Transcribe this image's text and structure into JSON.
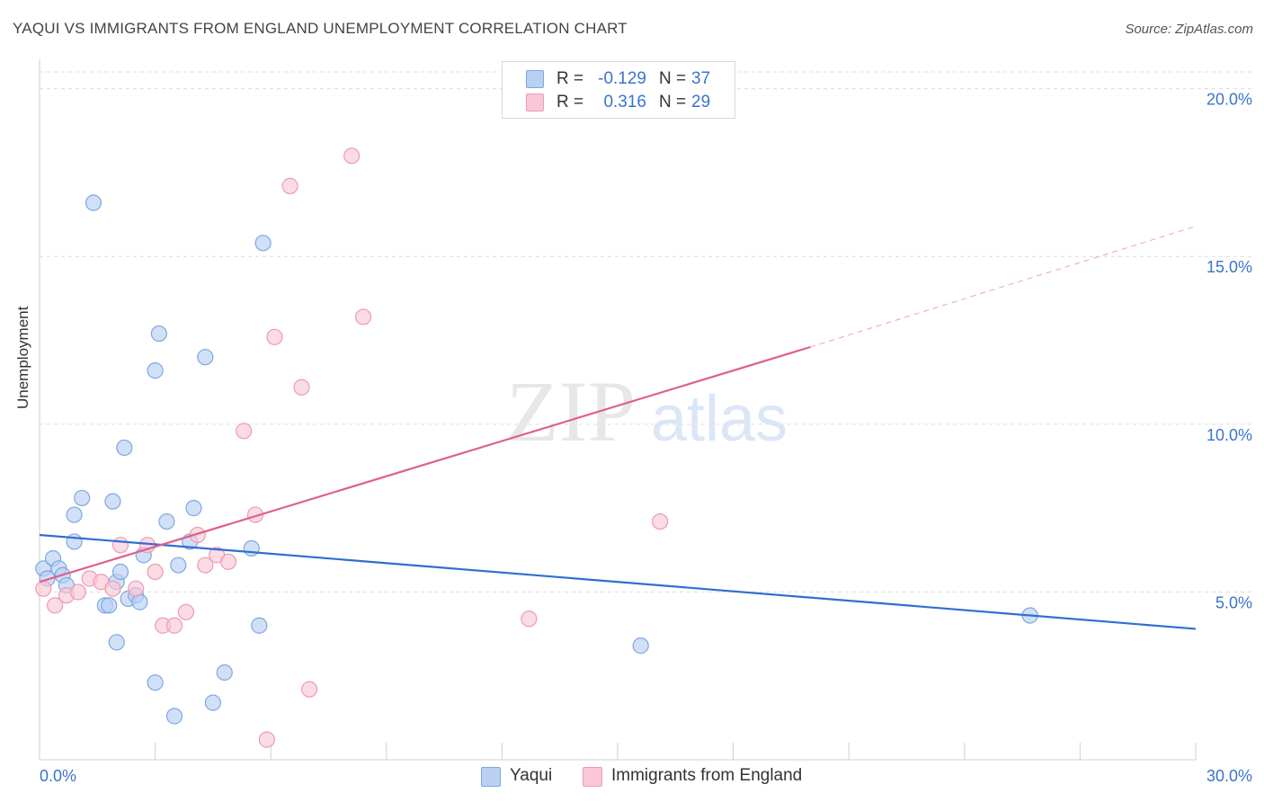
{
  "title": "YAQUI VS IMMIGRANTS FROM ENGLAND UNEMPLOYMENT CORRELATION CHART",
  "source": "Source: ZipAtlas.com",
  "watermark": {
    "part1": "ZIP",
    "part2": "atlas"
  },
  "legend": {
    "rows": [
      {
        "r_label": "R =",
        "r_value": "-0.129",
        "n_label": "N =",
        "n_value": "37"
      },
      {
        "r_label": "R =",
        "r_value": "0.316",
        "n_label": "N =",
        "n_value": "29"
      }
    ]
  },
  "colors": {
    "yaqui_fill": "#b9d0f2",
    "yaqui_stroke": "#7fa7e0",
    "yaqui_line": "#2f6fd0",
    "england_fill": "#f9c7d6",
    "england_stroke": "#ee9ab5",
    "england_line": "#e0608a",
    "grid": "#dcdcdc",
    "tick_label": "#3a74c9"
  },
  "chart_data": {
    "type": "scatter",
    "title": "YAQUI VS IMMIGRANTS FROM ENGLAND UNEMPLOYMENT CORRELATION CHART",
    "xlabel": "",
    "ylabel": "Unemployment",
    "xlim": [
      0,
      30
    ],
    "ylim": [
      0,
      20.5
    ],
    "x_tick_labels": [
      "0.0%",
      "30.0%"
    ],
    "y_ticks": [
      5,
      10,
      15,
      20
    ],
    "y_tick_labels": [
      "5.0%",
      "10.0%",
      "15.0%",
      "20.0%"
    ],
    "grid": true,
    "legend_position": "top-center",
    "series": [
      {
        "name": "Yaqui",
        "points": [
          [
            0.1,
            5.7
          ],
          [
            0.2,
            5.4
          ],
          [
            0.35,
            6.0
          ],
          [
            0.5,
            5.7
          ],
          [
            0.6,
            5.5
          ],
          [
            0.7,
            5.2
          ],
          [
            0.9,
            7.3
          ],
          [
            1.1,
            7.8
          ],
          [
            0.9,
            6.5
          ],
          [
            1.4,
            16.6
          ],
          [
            1.7,
            4.6
          ],
          [
            1.8,
            4.6
          ],
          [
            1.9,
            7.7
          ],
          [
            2.0,
            5.3
          ],
          [
            2.1,
            5.6
          ],
          [
            2.0,
            3.5
          ],
          [
            2.2,
            9.3
          ],
          [
            2.3,
            4.8
          ],
          [
            2.5,
            4.9
          ],
          [
            2.6,
            4.7
          ],
          [
            2.7,
            6.1
          ],
          [
            3.0,
            11.6
          ],
          [
            3.1,
            12.7
          ],
          [
            3.0,
            2.3
          ],
          [
            3.3,
            7.1
          ],
          [
            3.5,
            1.3
          ],
          [
            3.6,
            5.8
          ],
          [
            3.9,
            6.5
          ],
          [
            4.0,
            7.5
          ],
          [
            4.3,
            12.0
          ],
          [
            4.5,
            1.7
          ],
          [
            4.8,
            2.6
          ],
          [
            5.5,
            6.3
          ],
          [
            5.7,
            4.0
          ],
          [
            5.8,
            15.4
          ],
          [
            15.6,
            3.4
          ],
          [
            25.7,
            4.3
          ]
        ]
      },
      {
        "name": "Immigrants from England",
        "points": [
          [
            0.1,
            5.1
          ],
          [
            0.4,
            4.6
          ],
          [
            0.7,
            4.9
          ],
          [
            1.0,
            5.0
          ],
          [
            1.3,
            5.4
          ],
          [
            1.6,
            5.3
          ],
          [
            1.9,
            5.1
          ],
          [
            2.1,
            6.4
          ],
          [
            2.5,
            5.1
          ],
          [
            2.8,
            6.4
          ],
          [
            3.0,
            5.6
          ],
          [
            3.2,
            4.0
          ],
          [
            3.5,
            4.0
          ],
          [
            3.8,
            4.4
          ],
          [
            4.1,
            6.7
          ],
          [
            4.3,
            5.8
          ],
          [
            4.6,
            6.1
          ],
          [
            4.9,
            5.9
          ],
          [
            5.3,
            9.8
          ],
          [
            5.6,
            7.3
          ],
          [
            5.9,
            0.6
          ],
          [
            6.1,
            12.6
          ],
          [
            6.5,
            17.1
          ],
          [
            6.8,
            11.1
          ],
          [
            7.0,
            2.1
          ],
          [
            8.1,
            18.0
          ],
          [
            8.4,
            13.2
          ],
          [
            12.7,
            4.2
          ],
          [
            16.1,
            7.1
          ]
        ]
      }
    ],
    "trend_lines": [
      {
        "series": "Yaqui",
        "x_start": 0,
        "y_start": 6.7,
        "x_end": 30,
        "y_end": 3.9
      },
      {
        "series": "Immigrants from England",
        "x_start": 0,
        "y_start": 5.3,
        "x_end": 20,
        "y_end": 12.3,
        "dashed_to_x": 30,
        "dashed_to_y": 15.9
      }
    ]
  }
}
